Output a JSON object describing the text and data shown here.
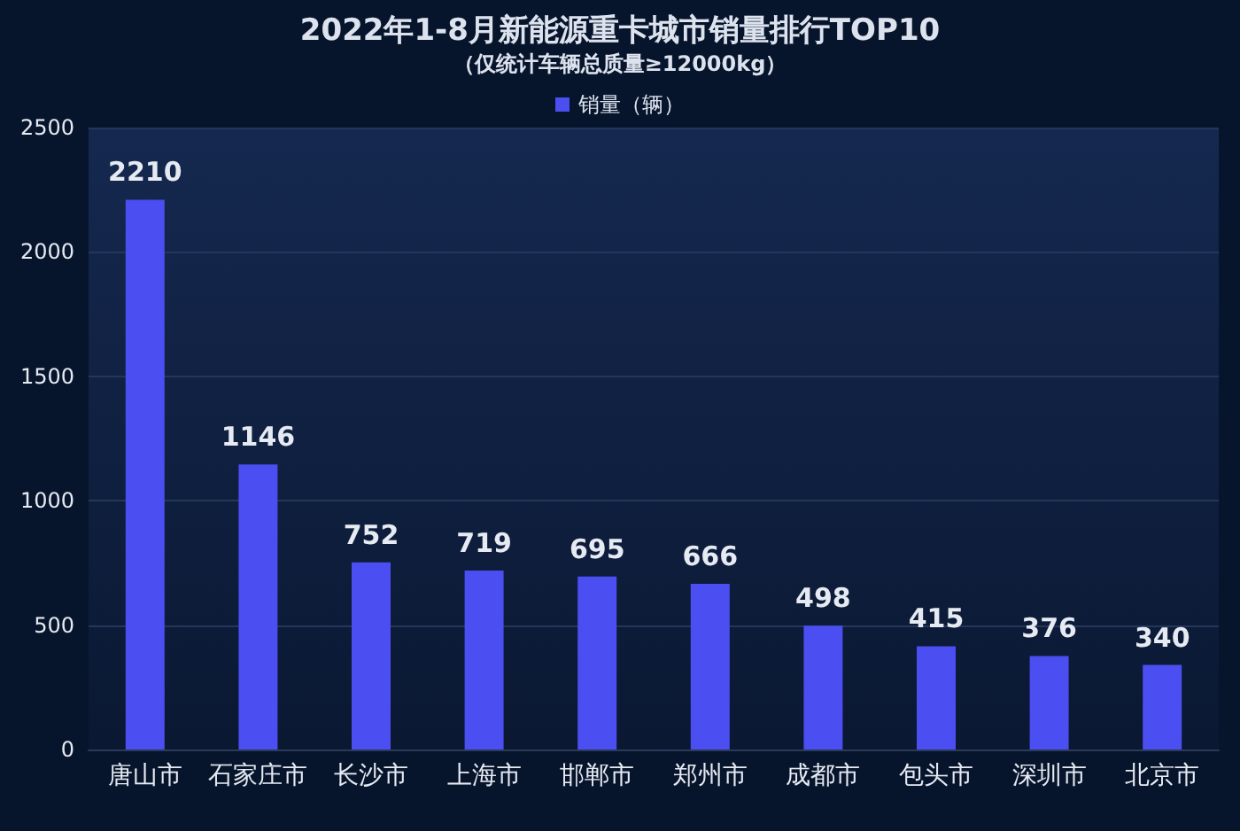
{
  "chart_data": {
    "type": "bar",
    "title": "2022年1-8月新能源重卡城市销量排行TOP10",
    "subtitle": "（仅统计车辆总质量≥12000kg）",
    "categories": [
      "唐山市",
      "石家庄市",
      "长沙市",
      "上海市",
      "邯郸市",
      "郑州市",
      "成都市",
      "包头市",
      "深圳市",
      "北京市"
    ],
    "series": [
      {
        "name": "销量（辆）",
        "color": "#4b4ef0",
        "values": [
          2210,
          1146,
          752,
          719,
          695,
          666,
          498,
          415,
          376,
          340
        ]
      }
    ],
    "ylim": [
      0,
      2500
    ],
    "yticks": [
      0,
      500,
      1000,
      1500,
      2000,
      2500
    ],
    "grid": "y",
    "legend": "top",
    "data_labels": true
  }
}
